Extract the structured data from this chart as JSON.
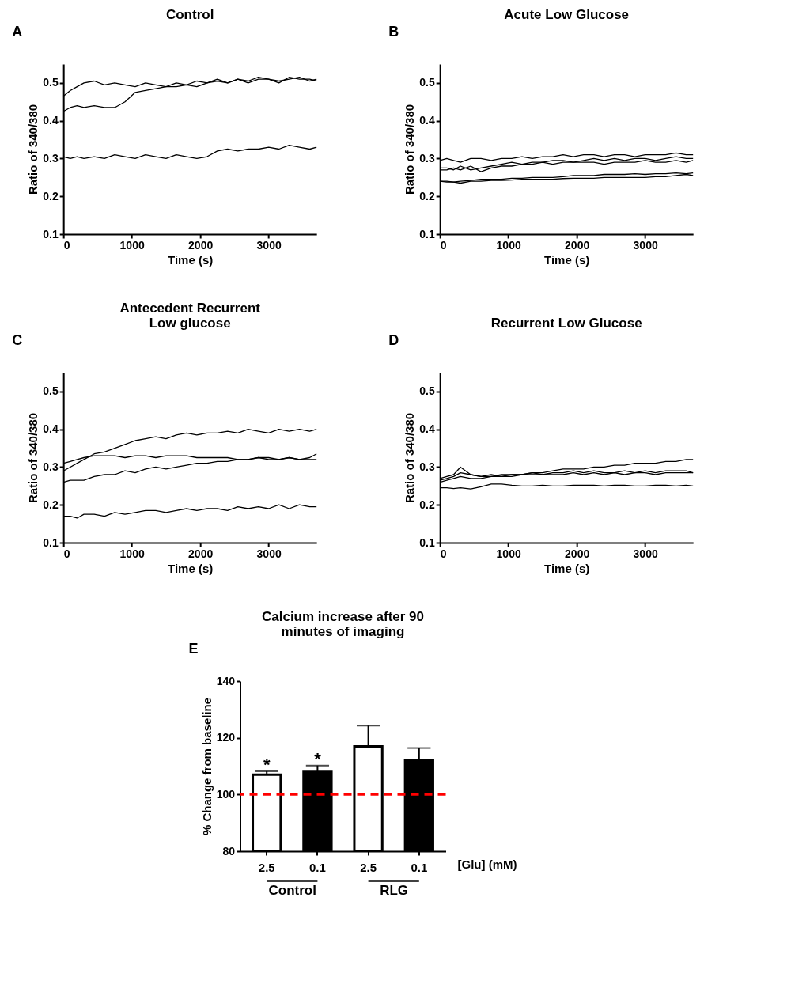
{
  "chart_data": [
    {
      "type": "line",
      "title": "Control",
      "xlabel": "Time (s)",
      "ylabel": "Ratio of 340/380",
      "annotations": [
        "A"
      ],
      "xlim": [
        0,
        3700
      ],
      "ylim": [
        0.1,
        0.55
      ],
      "xticks": [
        0,
        1000,
        2000,
        3000
      ],
      "yticks": [
        0.1,
        0.2,
        0.3,
        0.4,
        0.5
      ],
      "grid": false,
      "legend": false,
      "x": [
        0,
        100,
        200,
        300,
        450,
        600,
        750,
        900,
        1050,
        1200,
        1350,
        1500,
        1650,
        1800,
        1950,
        2100,
        2250,
        2400,
        2550,
        2700,
        2850,
        3000,
        3150,
        3300,
        3450,
        3600,
        3700
      ],
      "series": [
        {
          "color": "#000000",
          "values": [
            0.465,
            0.48,
            0.49,
            0.5,
            0.505,
            0.495,
            0.5,
            0.495,
            0.49,
            0.5,
            0.495,
            0.49,
            0.5,
            0.495,
            0.505,
            0.5,
            0.51,
            0.5,
            0.51,
            0.505,
            0.515,
            0.51,
            0.505,
            0.51,
            0.515,
            0.505,
            0.51
          ]
        },
        {
          "color": "#000000",
          "values": [
            0.425,
            0.435,
            0.44,
            0.435,
            0.44,
            0.435,
            0.435,
            0.45,
            0.475,
            0.48,
            0.485,
            0.49,
            0.49,
            0.495,
            0.49,
            0.5,
            0.505,
            0.5,
            0.51,
            0.5,
            0.51,
            0.51,
            0.5,
            0.515,
            0.51,
            0.51,
            0.505
          ]
        },
        {
          "color": "#000000",
          "values": [
            0.305,
            0.3,
            0.305,
            0.3,
            0.305,
            0.3,
            0.31,
            0.305,
            0.3,
            0.31,
            0.305,
            0.3,
            0.31,
            0.305,
            0.3,
            0.305,
            0.32,
            0.325,
            0.32,
            0.325,
            0.325,
            0.33,
            0.325,
            0.335,
            0.33,
            0.325,
            0.33
          ]
        }
      ]
    },
    {
      "type": "line",
      "title": "Acute Low Glucose",
      "xlabel": "Time (s)",
      "ylabel": "Ratio of 340/380",
      "annotations": [
        "B"
      ],
      "xlim": [
        0,
        3700
      ],
      "ylim": [
        0.1,
        0.55
      ],
      "xticks": [
        0,
        1000,
        2000,
        3000
      ],
      "yticks": [
        0.1,
        0.2,
        0.3,
        0.4,
        0.5
      ],
      "grid": false,
      "legend": false,
      "x": [
        0,
        100,
        200,
        300,
        450,
        600,
        750,
        900,
        1050,
        1200,
        1350,
        1500,
        1650,
        1800,
        1950,
        2100,
        2250,
        2400,
        2550,
        2700,
        2850,
        3000,
        3150,
        3300,
        3450,
        3600,
        3700
      ],
      "series": [
        {
          "color": "#000000",
          "values": [
            0.295,
            0.3,
            0.295,
            0.29,
            0.3,
            0.3,
            0.295,
            0.3,
            0.3,
            0.305,
            0.3,
            0.305,
            0.305,
            0.31,
            0.305,
            0.31,
            0.31,
            0.305,
            0.31,
            0.31,
            0.305,
            0.31,
            0.31,
            0.31,
            0.315,
            0.31,
            0.31
          ]
        },
        {
          "color": "#000000",
          "values": [
            0.275,
            0.275,
            0.27,
            0.28,
            0.27,
            0.275,
            0.28,
            0.285,
            0.29,
            0.285,
            0.29,
            0.29,
            0.295,
            0.295,
            0.29,
            0.295,
            0.3,
            0.295,
            0.3,
            0.295,
            0.3,
            0.3,
            0.295,
            0.3,
            0.305,
            0.3,
            0.3
          ]
        },
        {
          "color": "#000000",
          "values": [
            0.27,
            0.27,
            0.275,
            0.27,
            0.28,
            0.265,
            0.275,
            0.28,
            0.28,
            0.285,
            0.285,
            0.29,
            0.285,
            0.29,
            0.29,
            0.29,
            0.29,
            0.285,
            0.29,
            0.29,
            0.29,
            0.295,
            0.29,
            0.29,
            0.295,
            0.29,
            0.295
          ]
        },
        {
          "color": "#000000",
          "values": [
            0.24,
            0.24,
            0.238,
            0.24,
            0.242,
            0.245,
            0.245,
            0.245,
            0.248,
            0.248,
            0.25,
            0.25,
            0.25,
            0.252,
            0.255,
            0.255,
            0.255,
            0.258,
            0.258,
            0.258,
            0.26,
            0.258,
            0.26,
            0.26,
            0.262,
            0.26,
            0.262
          ]
        },
        {
          "color": "#000000",
          "values": [
            0.24,
            0.238,
            0.238,
            0.235,
            0.24,
            0.24,
            0.242,
            0.242,
            0.243,
            0.245,
            0.245,
            0.245,
            0.245,
            0.247,
            0.248,
            0.248,
            0.248,
            0.25,
            0.25,
            0.25,
            0.25,
            0.25,
            0.252,
            0.252,
            0.255,
            0.258,
            0.255
          ]
        }
      ]
    },
    {
      "type": "line",
      "title": "Antecedent Recurrent Low glucose",
      "xlabel": "Time (s)",
      "ylabel": "Ratio of 340/380",
      "annotations": [
        "C"
      ],
      "xlim": [
        0,
        3700
      ],
      "ylim": [
        0.1,
        0.55
      ],
      "xticks": [
        0,
        1000,
        2000,
        3000
      ],
      "yticks": [
        0.1,
        0.2,
        0.3,
        0.4,
        0.5
      ],
      "grid": false,
      "legend": false,
      "x": [
        0,
        100,
        200,
        300,
        450,
        600,
        750,
        900,
        1050,
        1200,
        1350,
        1500,
        1650,
        1800,
        1950,
        2100,
        2250,
        2400,
        2550,
        2700,
        2850,
        3000,
        3150,
        3300,
        3450,
        3600,
        3700
      ],
      "series": [
        {
          "color": "#000000",
          "values": [
            0.29,
            0.3,
            0.31,
            0.32,
            0.335,
            0.34,
            0.35,
            0.36,
            0.37,
            0.375,
            0.38,
            0.375,
            0.385,
            0.39,
            0.385,
            0.39,
            0.39,
            0.395,
            0.39,
            0.4,
            0.395,
            0.39,
            0.4,
            0.395,
            0.4,
            0.395,
            0.4
          ]
        },
        {
          "color": "#000000",
          "values": [
            0.31,
            0.315,
            0.32,
            0.325,
            0.33,
            0.33,
            0.33,
            0.325,
            0.33,
            0.33,
            0.325,
            0.33,
            0.33,
            0.33,
            0.325,
            0.325,
            0.325,
            0.325,
            0.32,
            0.32,
            0.325,
            0.325,
            0.32,
            0.325,
            0.32,
            0.32,
            0.32
          ]
        },
        {
          "color": "#000000",
          "values": [
            0.26,
            0.265,
            0.265,
            0.265,
            0.275,
            0.28,
            0.28,
            0.29,
            0.285,
            0.295,
            0.3,
            0.295,
            0.3,
            0.305,
            0.31,
            0.31,
            0.315,
            0.315,
            0.32,
            0.32,
            0.325,
            0.32,
            0.32,
            0.325,
            0.32,
            0.325,
            0.335
          ]
        },
        {
          "color": "#000000",
          "values": [
            0.17,
            0.17,
            0.165,
            0.175,
            0.175,
            0.17,
            0.18,
            0.175,
            0.18,
            0.185,
            0.185,
            0.18,
            0.185,
            0.19,
            0.185,
            0.19,
            0.19,
            0.185,
            0.195,
            0.19,
            0.195,
            0.19,
            0.2,
            0.19,
            0.2,
            0.195,
            0.195
          ]
        }
      ]
    },
    {
      "type": "line",
      "title": "Recurrent Low Glucose",
      "xlabel": "Time (s)",
      "ylabel": "Ratio of 340/380",
      "annotations": [
        "D"
      ],
      "xlim": [
        0,
        3700
      ],
      "ylim": [
        0.1,
        0.55
      ],
      "xticks": [
        0,
        1000,
        2000,
        3000
      ],
      "yticks": [
        0.1,
        0.2,
        0.3,
        0.4,
        0.5
      ],
      "grid": false,
      "legend": false,
      "x": [
        0,
        100,
        200,
        300,
        450,
        600,
        750,
        900,
        1050,
        1200,
        1350,
        1500,
        1650,
        1800,
        1950,
        2100,
        2250,
        2400,
        2550,
        2700,
        2850,
        3000,
        3150,
        3300,
        3450,
        3600,
        3700
      ],
      "series": [
        {
          "color": "#000000",
          "values": [
            0.27,
            0.275,
            0.28,
            0.3,
            0.28,
            0.275,
            0.28,
            0.275,
            0.28,
            0.28,
            0.285,
            0.285,
            0.29,
            0.295,
            0.295,
            0.295,
            0.3,
            0.3,
            0.305,
            0.305,
            0.31,
            0.31,
            0.31,
            0.315,
            0.315,
            0.32,
            0.32
          ]
        },
        {
          "color": "#000000",
          "values": [
            0.265,
            0.27,
            0.275,
            0.285,
            0.28,
            0.275,
            0.275,
            0.28,
            0.28,
            0.28,
            0.285,
            0.28,
            0.285,
            0.285,
            0.29,
            0.285,
            0.29,
            0.285,
            0.285,
            0.29,
            0.285,
            0.29,
            0.285,
            0.29,
            0.29,
            0.29,
            0.285
          ]
        },
        {
          "color": "#000000",
          "values": [
            0.26,
            0.265,
            0.27,
            0.275,
            0.27,
            0.27,
            0.275,
            0.275,
            0.275,
            0.28,
            0.28,
            0.28,
            0.28,
            0.28,
            0.285,
            0.28,
            0.285,
            0.28,
            0.285,
            0.28,
            0.285,
            0.285,
            0.28,
            0.285,
            0.285,
            0.285,
            0.285
          ]
        },
        {
          "color": "#000000",
          "values": [
            0.245,
            0.245,
            0.243,
            0.245,
            0.242,
            0.248,
            0.255,
            0.255,
            0.252,
            0.25,
            0.25,
            0.252,
            0.25,
            0.25,
            0.252,
            0.252,
            0.252,
            0.25,
            0.252,
            0.252,
            0.25,
            0.25,
            0.252,
            0.252,
            0.25,
            0.252,
            0.25
          ]
        }
      ]
    },
    {
      "type": "bar",
      "title": "Calcium increase after 90 minutes of imaging",
      "ylabel": "% Change from baseline",
      "xlabel": "[Glu] (mM)",
      "categories": [
        "2.5",
        "0.1",
        "2.5",
        "0.1"
      ],
      "values": [
        107,
        108,
        117,
        112
      ],
      "colors": [
        "#ffffff",
        "#000000",
        "#ffffff",
        "#000000"
      ],
      "errors": [
        [
          107,
          108.2
        ],
        [
          108,
          110.2
        ],
        [
          117,
          124.3
        ],
        [
          112,
          116.4
        ]
      ],
      "ylim": [
        80,
        140
      ],
      "yticks": [
        80,
        100,
        120,
        140
      ],
      "ref_lines": [
        {
          "axis": "y",
          "value": 100,
          "color": "#ff0000",
          "line_style": "dashed"
        }
      ],
      "annotations": [
        "E",
        "Control",
        "RLG",
        {
          "text": "*",
          "x": "2.5",
          "y": 108.2
        },
        {
          "text": "*",
          "x": "0.1",
          "y": 110.2
        }
      ]
    }
  ]
}
